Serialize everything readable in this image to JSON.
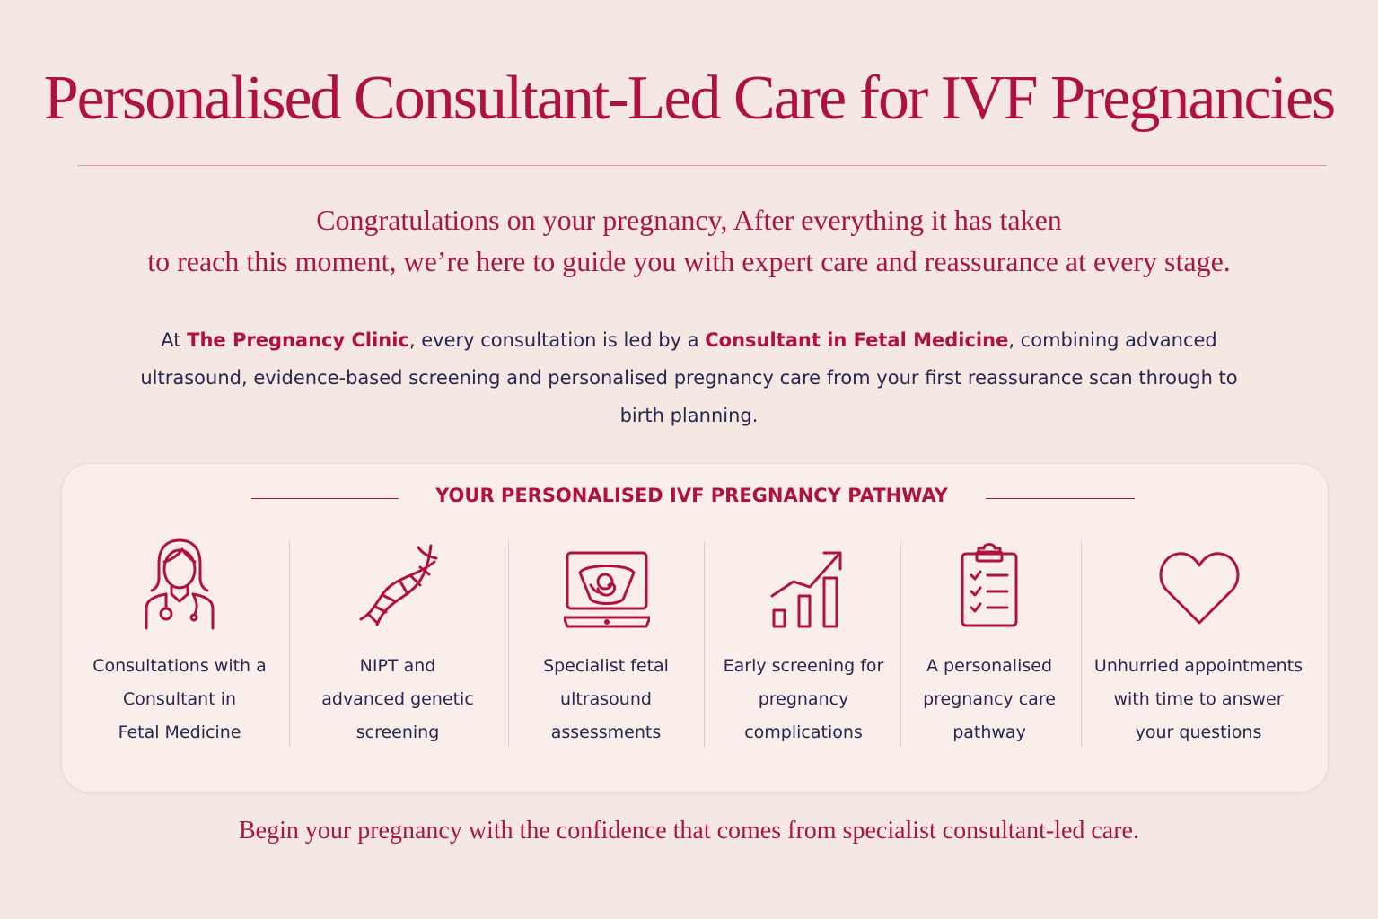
{
  "title": "Personalised Consultant-Led Care for IVF Pregnancies",
  "intro": {
    "line1": "Congratulations on your pregnancy, After everything it has taken",
    "line2": "to reach this moment, we’re here to guide you with expert care and reassurance at every stage."
  },
  "body": {
    "part1": "At ",
    "clinic": "The Pregnancy Clinic",
    "part2": ", every consultation is led by a ",
    "consultant": "Consultant in Fetal Medicine",
    "part3": ", combining advanced ultrasound, evidence-based screening and personalised pregnancy care from your first reassurance scan through to birth planning."
  },
  "pathway": {
    "heading": "YOUR PERSONALISED IVF PREGNANCY PATHWAY",
    "items": [
      {
        "icon": "doctor-icon",
        "lines": [
          "Consultations with a",
          "Consultant in",
          "Fetal Medicine"
        ]
      },
      {
        "icon": "dna-icon",
        "lines": [
          "NIPT and",
          "advanced genetic",
          "screening"
        ]
      },
      {
        "icon": "ultrasound-monitor-icon",
        "lines": [
          "Specialist fetal",
          "ultrasound",
          "assessments"
        ]
      },
      {
        "icon": "growth-chart-icon",
        "lines": [
          "Early screening for",
          "pregnancy",
          "complications"
        ]
      },
      {
        "icon": "clipboard-checklist-icon",
        "lines": [
          "A personalised",
          "pregnancy care",
          "pathway"
        ]
      },
      {
        "icon": "heart-icon",
        "lines": [
          "Unhurried appointments",
          "with time to answer",
          "your questions"
        ]
      }
    ]
  },
  "footer": "Begin your pregnancy with the confidence that comes from specialist consultant-led care.",
  "colors": {
    "accent": "#b0123f",
    "text": "#262650",
    "background": "#f5e8e3"
  }
}
